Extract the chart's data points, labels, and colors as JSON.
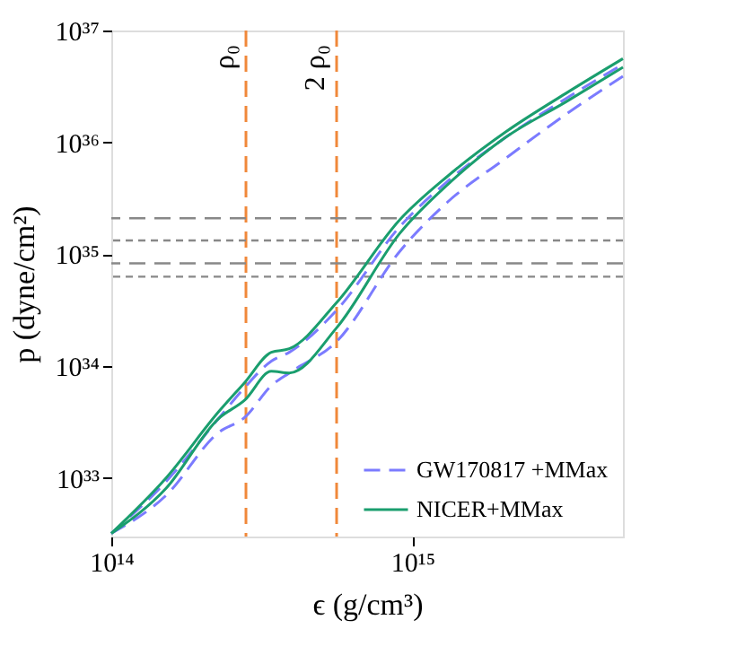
{
  "chart_data": {
    "type": "line",
    "xlabel": "ϵ (g/cm³)",
    "ylabel": "p (dyne/cm²)",
    "log": "xy",
    "grid": false,
    "legend": "bottom right",
    "x": [
      100000000000000.0,
      152000000000000.0,
      227000000000000.0,
      278000000000000.0,
      340000000000000.0,
      390000000000000.0,
      560000000000000.0,
      910000000000000.0,
      1310000000000000.0,
      2040000000000000.0,
      3230000000000000.0,
      5000000000000000.0
    ],
    "xlim": [
      100000000000000.0,
      5000000000000000.0
    ],
    "xticks": [
      {
        "value": 100000000000000.0,
        "label": "10¹⁴"
      },
      {
        "value": 1000000000000000.0,
        "label": "10¹⁵"
      }
    ],
    "ylim": [
      3e+32,
      1e+37
    ],
    "yticks": [
      {
        "value": 1e+33,
        "label": "10³³"
      },
      {
        "value": 1e+34,
        "label": "10³⁴"
      },
      {
        "value": 1e+35,
        "label": "10³⁵"
      },
      {
        "value": 1e+36,
        "label": "10³⁶"
      },
      {
        "value": 1e+37,
        "label": "10³⁷"
      }
    ],
    "series": [
      {
        "name": "GW170817 +MMax",
        "color": "#7b7bff",
        "line_style": "dashed",
        "values": [
          3.2e+32,
          9.3e+32,
          3.4e+33,
          6.5e+33,
          1.11e+34,
          1.33e+34,
          3.16e+34,
          1.78e+35,
          4.5e+35,
          1.11e+36,
          2.46e+36,
          5e+36
        ]
      },
      {
        "color": "#7b7bff",
        "line_style": "dashed",
        "values": [
          3.2e+32,
          7e+32,
          2.55e+33,
          3.5e+33,
          6.7e+33,
          8.7e+33,
          1.66e+34,
          1.07e+35,
          2.94e+35,
          7.2e+35,
          1.78e+36,
          3.9e+36
        ]
      },
      {
        "name": "NICER+MMax",
        "color": "#1a9e6e",
        "line_style": "solid",
        "values": [
          3.2e+32,
          1e+33,
          3.9e+33,
          7.2e+33,
          1.33e+34,
          1.43e+34,
          3.7e+34,
          2.05e+35,
          5e+35,
          1.24e+36,
          2.74e+36,
          5.6e+36
        ]
      },
      {
        "color": "#1a9e6e",
        "line_style": "solid",
        "values": [
          3.2e+32,
          8.1e+32,
          3.4e+33,
          5e+33,
          9e+33,
          8.7e+33,
          2.2e+34,
          1.55e+35,
          4.2e+35,
          1.11e+36,
          2.3e+36,
          4.7e+36
        ]
      }
    ],
    "ref_lines": [
      {
        "axis": "x",
        "value": 280000000000000.0,
        "label": "ρ₀",
        "color": "#f0883a",
        "line_style": "dashed"
      },
      {
        "axis": "x",
        "value": 560000000000000.0,
        "label": "2 ρ₀",
        "color": "#f0883a",
        "line_style": "dashed"
      },
      {
        "axis": "y",
        "value": 2.1e+35,
        "color": "#888888",
        "line_style": "dashed"
      },
      {
        "axis": "y",
        "value": 1.33e+35,
        "color": "#888888",
        "line_style": "dotted"
      },
      {
        "axis": "y",
        "value": 8.3e+34,
        "color": "#888888",
        "line_style": "dashed"
      },
      {
        "axis": "y",
        "value": 6.3e+34,
        "color": "#888888",
        "line_style": "dotted"
      }
    ]
  }
}
